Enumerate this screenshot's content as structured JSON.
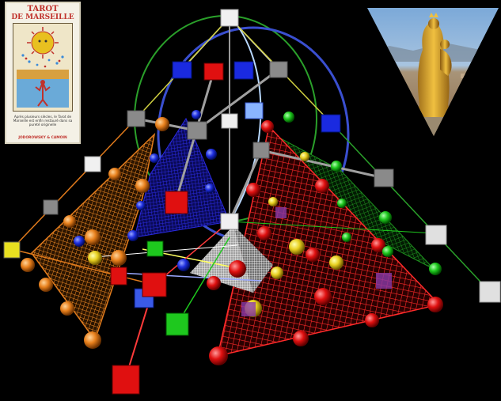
{
  "tarot_card": {
    "title_line1": "TAROT",
    "title_line2": "DE MARSEILLE",
    "blurb": "Après plusieurs siècles, le Tarot de Marseille est enfin restauré dans sa pureté originelle",
    "authors": "JODOROWSKY & CAMOIN",
    "icon": "tarot-card-sun-icon"
  },
  "colors": {
    "background": "#000000",
    "orange_plane": "#e07a1c",
    "blue_plane": "#1a1acc",
    "red_plane": "#e01a1a",
    "green_plane": "#1a8a1a",
    "white_pyramid": "#d8d8d8",
    "circle_blue": "#3a4fd0",
    "circle_green": "#2aa02a"
  },
  "madonna_image": {
    "icon": "golden-madonna-statue-icon"
  }
}
